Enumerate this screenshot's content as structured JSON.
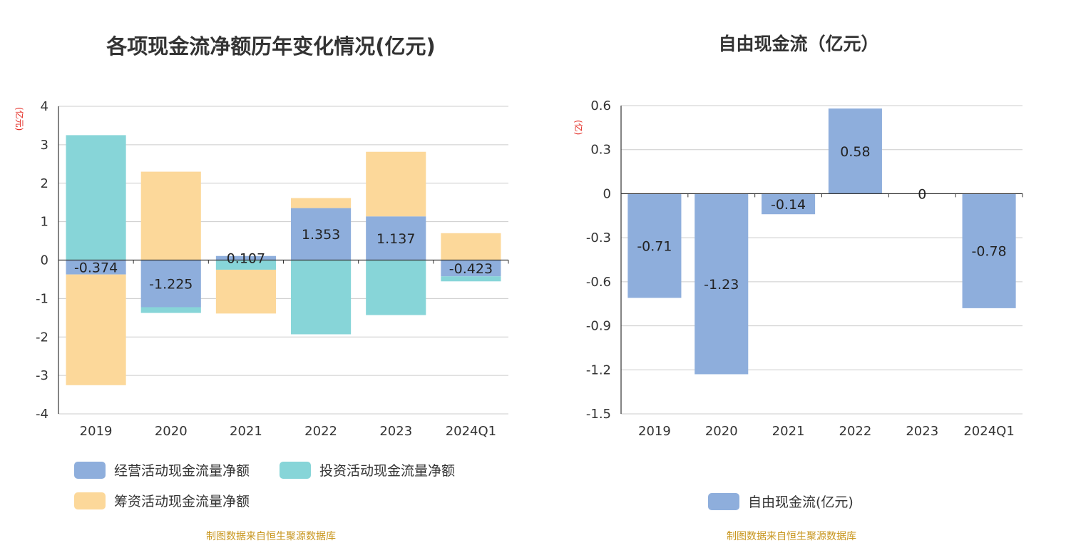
{
  "chart_data": [
    {
      "type": "bar",
      "stacked": true,
      "title": "各项现金流净额历年变化情况(亿元)",
      "ylabel": "(亿元)",
      "categories": [
        "2019",
        "2020",
        "2021",
        "2022",
        "2023",
        "2024Q1"
      ],
      "ylim": [
        -4,
        4
      ],
      "yticks": [
        4,
        3,
        2,
        1,
        0,
        -1,
        -2,
        -3,
        -4
      ],
      "grid": true,
      "legend_position": "bottom",
      "series": [
        {
          "name": "经营活动现金流量净额",
          "color": "#8eaedc",
          "values": [
            -0.374,
            -1.225,
            0.107,
            1.353,
            1.137,
            -0.423
          ],
          "labels": [
            "-0.374",
            "-1.225",
            "0.107",
            "1.353",
            "1.137",
            "-0.423"
          ]
        },
        {
          "name": "投资活动现金流量净额",
          "color": "#87d5d8",
          "values": [
            3.25,
            -0.15,
            -0.25,
            -1.93,
            -1.43,
            -0.13
          ]
        },
        {
          "name": "筹资活动现金流量净额",
          "color": "#fcd89a",
          "values": [
            -2.88,
            2.3,
            -1.14,
            0.26,
            1.68,
            0.7
          ]
        }
      ],
      "source": "制图数据来自恒生聚源数据库"
    },
    {
      "type": "bar",
      "title": "自由现金流（亿元）",
      "ylabel": "(亿)",
      "categories": [
        "2019",
        "2020",
        "2021",
        "2022",
        "2023",
        "2024Q1"
      ],
      "ylim": [
        -1.5,
        0.6
      ],
      "yticks": [
        "0.6",
        "0.3",
        "0",
        "-0.3",
        "-0.6",
        "-0.9",
        "-1.2",
        "-1.5"
      ],
      "grid": true,
      "legend_position": "bottom",
      "series": [
        {
          "name": "自由现金流(亿元)",
          "color": "#8eaedc",
          "values": [
            -0.71,
            -1.23,
            -0.14,
            0.58,
            0,
            -0.78
          ],
          "labels": [
            "-0.71",
            "-1.23",
            "-0.14",
            "0.58",
            "0",
            "-0.78"
          ]
        }
      ],
      "source": "制图数据来自恒生聚源数据库"
    }
  ]
}
